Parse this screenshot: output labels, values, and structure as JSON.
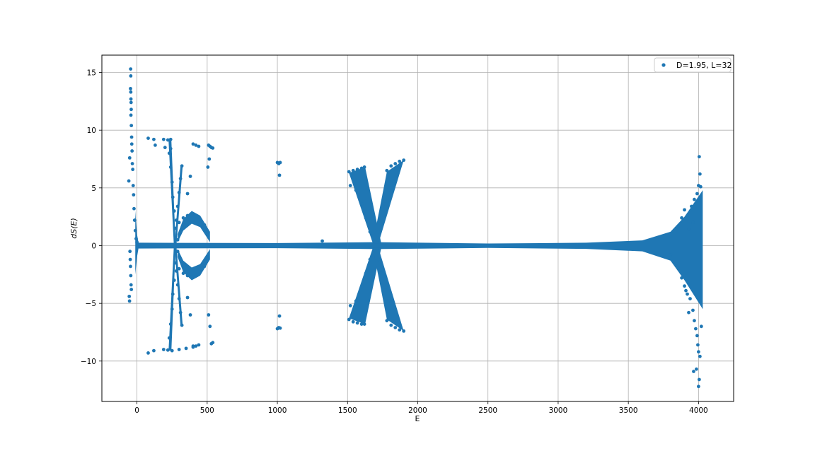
{
  "chart_data": {
    "type": "scatter",
    "title": "",
    "xlabel": "E",
    "ylabel": "dS(E)",
    "xlim": [
      -250,
      4250
    ],
    "ylim": [
      -13.5,
      16.5
    ],
    "xticks": [
      0,
      500,
      1000,
      1500,
      2000,
      2500,
      3000,
      3500,
      4000
    ],
    "yticks": [
      -10,
      -5,
      0,
      5,
      10,
      15
    ],
    "xtick_labels": [
      "0",
      "500",
      "1000",
      "1500",
      "2000",
      "2500",
      "3000",
      "3500",
      "4000"
    ],
    "ytick_labels": [
      "−10",
      "−5",
      "0",
      "5",
      "10",
      "15"
    ],
    "grid": true,
    "legend_position": "upper right",
    "series": [
      {
        "name": "D=1.95, L=32",
        "color": "#1f77b4",
        "marker": "circle",
        "points": [
          [
            -45,
            15.3
          ],
          [
            -44,
            14.7
          ],
          [
            -46,
            13.6
          ],
          [
            -44,
            13.3
          ],
          [
            -43,
            12.7
          ],
          [
            -42,
            12.4
          ],
          [
            -41,
            11.8
          ],
          [
            -43,
            11.3
          ],
          [
            -40,
            10.4
          ],
          [
            -38,
            9.4
          ],
          [
            -37,
            8.8
          ],
          [
            -35,
            8.2
          ],
          [
            -52,
            7.6
          ],
          [
            -33,
            7.1
          ],
          [
            -30,
            6.6
          ],
          [
            -58,
            5.6
          ],
          [
            -27,
            5.2
          ],
          [
            -24,
            4.4
          ],
          [
            -21,
            3.2
          ],
          [
            -17,
            2.2
          ],
          [
            -12,
            1.3
          ],
          [
            -6,
            0.6
          ],
          [
            0,
            0.3
          ],
          [
            -50,
            -0.5
          ],
          [
            -48,
            -1.2
          ],
          [
            -46,
            -1.8
          ],
          [
            -44,
            -2.6
          ],
          [
            -42,
            -3.4
          ],
          [
            -40,
            -3.8
          ],
          [
            -55,
            -4.4
          ],
          [
            -53,
            -4.8
          ],
          [
            80,
            9.3
          ],
          [
            120,
            9.2
          ],
          [
            190,
            9.2
          ],
          [
            220,
            9.15
          ],
          [
            240,
            9.2
          ],
          [
            130,
            8.7
          ],
          [
            200,
            8.5
          ],
          [
            240,
            8.4
          ],
          [
            80,
            -9.3
          ],
          [
            120,
            -9.1
          ],
          [
            190,
            -9.0
          ],
          [
            220,
            -9.05
          ],
          [
            250,
            -9.1
          ],
          [
            300,
            -9.0
          ],
          [
            350,
            -8.9
          ],
          [
            400,
            -8.7
          ],
          [
            230,
            8.0
          ],
          [
            240,
            6.8
          ],
          [
            250,
            5.5
          ],
          [
            255,
            4.2
          ],
          [
            265,
            3.0
          ],
          [
            275,
            1.5
          ],
          [
            290,
            0.5
          ],
          [
            230,
            -8.0
          ],
          [
            240,
            -6.8
          ],
          [
            250,
            -5.5
          ],
          [
            255,
            -4.2
          ],
          [
            265,
            -3.0
          ],
          [
            275,
            -1.5
          ],
          [
            290,
            -0.5
          ],
          [
            320,
            6.9
          ],
          [
            310,
            5.8
          ],
          [
            300,
            4.6
          ],
          [
            290,
            3.4
          ],
          [
            280,
            2.2
          ],
          [
            320,
            -6.9
          ],
          [
            310,
            -5.8
          ],
          [
            300,
            -4.6
          ],
          [
            290,
            -3.4
          ],
          [
            280,
            -2.2
          ],
          [
            300,
            2.0
          ],
          [
            330,
            2.4
          ],
          [
            360,
            2.6
          ],
          [
            390,
            2.7
          ],
          [
            420,
            2.6
          ],
          [
            450,
            2.3
          ],
          [
            480,
            1.8
          ],
          [
            505,
            1.2
          ],
          [
            300,
            -2.0
          ],
          [
            330,
            -2.4
          ],
          [
            360,
            -2.6
          ],
          [
            390,
            -2.7
          ],
          [
            420,
            -2.6
          ],
          [
            450,
            -2.3
          ],
          [
            480,
            -1.8
          ],
          [
            505,
            -1.2
          ],
          [
            360,
            4.5
          ],
          [
            380,
            6.0
          ],
          [
            400,
            8.8
          ],
          [
            420,
            8.7
          ],
          [
            440,
            8.6
          ],
          [
            360,
            -4.5
          ],
          [
            380,
            -6.0
          ],
          [
            400,
            -8.8
          ],
          [
            420,
            -8.7
          ],
          [
            440,
            -8.6
          ],
          [
            510,
            8.7
          ],
          [
            520,
            8.6
          ],
          [
            530,
            8.5
          ],
          [
            540,
            8.45
          ],
          [
            515,
            7.5
          ],
          [
            505,
            6.8
          ],
          [
            510,
            -6.0
          ],
          [
            520,
            -7.0
          ],
          [
            530,
            -8.5
          ],
          [
            540,
            -8.4
          ],
          [
            1000,
            7.2
          ],
          [
            1010,
            7.1
          ],
          [
            1020,
            7.2
          ],
          [
            1015,
            6.1
          ],
          [
            1000,
            -7.2
          ],
          [
            1010,
            -7.1
          ],
          [
            1020,
            -7.15
          ],
          [
            1015,
            -6.1
          ],
          [
            1320,
            0.4
          ],
          [
            1510,
            6.4
          ],
          [
            1540,
            6.5
          ],
          [
            1570,
            6.6
          ],
          [
            1600,
            6.7
          ],
          [
            1620,
            6.8
          ],
          [
            1520,
            5.2
          ],
          [
            1560,
            4.8
          ],
          [
            1600,
            3.6
          ],
          [
            1630,
            2.4
          ],
          [
            1660,
            1.2
          ],
          [
            1690,
            0.4
          ],
          [
            1510,
            -6.4
          ],
          [
            1540,
            -6.6
          ],
          [
            1570,
            -6.7
          ],
          [
            1600,
            -6.8
          ],
          [
            1620,
            -6.8
          ],
          [
            1520,
            -5.2
          ],
          [
            1560,
            -4.8
          ],
          [
            1600,
            -3.6
          ],
          [
            1630,
            -2.4
          ],
          [
            1660,
            -1.2
          ],
          [
            1690,
            -0.4
          ],
          [
            1780,
            6.5
          ],
          [
            1810,
            6.9
          ],
          [
            1840,
            7.1
          ],
          [
            1870,
            7.3
          ],
          [
            1900,
            7.4
          ],
          [
            1720,
            1.2
          ],
          [
            1740,
            2.4
          ],
          [
            1770,
            3.6
          ],
          [
            1790,
            4.8
          ],
          [
            1820,
            5.6
          ],
          [
            1780,
            -6.5
          ],
          [
            1810,
            -6.9
          ],
          [
            1840,
            -7.1
          ],
          [
            1870,
            -7.3
          ],
          [
            1900,
            -7.4
          ],
          [
            1720,
            -1.2
          ],
          [
            1740,
            -2.4
          ],
          [
            1770,
            -3.6
          ],
          [
            1790,
            -4.8
          ],
          [
            1820,
            -5.6
          ],
          [
            3800,
            0.8
          ],
          [
            3850,
            1.6
          ],
          [
            3880,
            2.4
          ],
          [
            3900,
            3.1
          ],
          [
            3920,
            2.6
          ],
          [
            3950,
            3.4
          ],
          [
            3970,
            4.0
          ],
          [
            3990,
            4.5
          ],
          [
            4000,
            5.2
          ],
          [
            4015,
            5.1
          ],
          [
            4010,
            6.2
          ],
          [
            4005,
            7.7
          ],
          [
            3960,
            2.0
          ],
          [
            3930,
            1.4
          ],
          [
            3800,
            -0.8
          ],
          [
            3850,
            -1.8
          ],
          [
            3880,
            -2.8
          ],
          [
            3900,
            -3.5
          ],
          [
            3920,
            -4.2
          ],
          [
            3940,
            -4.6
          ],
          [
            3960,
            -5.6
          ],
          [
            3970,
            -6.5
          ],
          [
            3980,
            -7.2
          ],
          [
            3990,
            -7.8
          ],
          [
            3995,
            -8.6
          ],
          [
            4000,
            -9.2
          ],
          [
            4010,
            -9.6
          ],
          [
            3985,
            -10.7
          ],
          [
            3965,
            -10.9
          ],
          [
            4005,
            -11.6
          ],
          [
            4000,
            -12.2
          ],
          [
            4020,
            -7.0
          ],
          [
            3930,
            -5.8
          ],
          [
            3910,
            -3.9
          ]
        ]
      }
    ]
  }
}
